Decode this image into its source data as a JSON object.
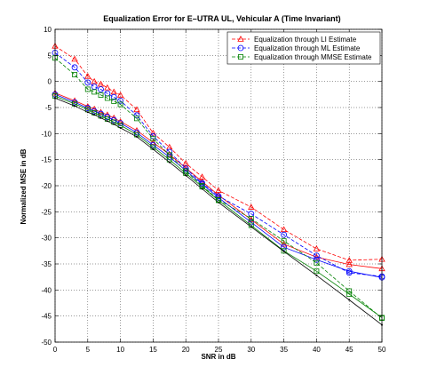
{
  "chart_data": {
    "type": "line",
    "title": "Equalization Error for E–UTRA UL, Vehicular A (Time Invariant)",
    "xlabel": "SNR in dB",
    "ylabel": "Normalized MSE in dB",
    "xlim": [
      0,
      50
    ],
    "ylim": [
      -50,
      10
    ],
    "xticks": [
      0,
      5,
      10,
      15,
      20,
      25,
      30,
      35,
      40,
      45,
      50
    ],
    "yticks": [
      10,
      5,
      0,
      -5,
      -10,
      -15,
      -20,
      -25,
      -30,
      -35,
      -40,
      -45,
      -50
    ],
    "grid": true,
    "legend_position": "top-right",
    "x": [
      0,
      3,
      5,
      6,
      7,
      8,
      9,
      10,
      12.5,
      15,
      17.5,
      20,
      22.5,
      25,
      30,
      35,
      40,
      45,
      50
    ],
    "series": [
      {
        "name": "Equalization through LI Estimate",
        "color": "#ff0000",
        "marker": "triangle",
        "linestyle": "dashed",
        "values": [
          6.8,
          4.3,
          1.0,
          0.0,
          -0.5,
          -1.2,
          -2.0,
          -2.6,
          -5.4,
          -9.9,
          -12.6,
          -15.7,
          -18.3,
          -20.9,
          -24.1,
          -28.4,
          -32.1,
          -34.3,
          -34.1
        ]
      },
      {
        "name": "Equalization through ML Estimate",
        "color": "#0000ff",
        "marker": "circle",
        "linestyle": "dashed",
        "values": [
          5.5,
          2.7,
          -0.2,
          -1.0,
          -1.5,
          -2.3,
          -3.0,
          -3.7,
          -6.5,
          -10.5,
          -13.5,
          -16.7,
          -19.5,
          -22.0,
          -25.4,
          -29.4,
          -33.4,
          -36.7,
          -37.4
        ]
      },
      {
        "name": "Equalization through MMSE Estimate",
        "color": "#008000",
        "marker": "square",
        "linestyle": "dashed",
        "values": [
          4.5,
          1.3,
          -1.5,
          -2.0,
          -2.6,
          -3.2,
          -3.8,
          -4.4,
          -7.1,
          -11.0,
          -14.1,
          -17.2,
          -20.0,
          -22.7,
          -26.3,
          -30.6,
          -34.8,
          -40.2,
          -45.4
        ]
      },
      {
        "name": "",
        "color": "#ff0000",
        "marker": "triangle",
        "linestyle": "solid",
        "values": [
          -2.2,
          -3.7,
          -4.8,
          -5.3,
          -5.9,
          -6.4,
          -7.0,
          -7.7,
          -9.4,
          -11.7,
          -14.0,
          -16.6,
          -19.2,
          -21.8,
          -26.5,
          -31.2,
          -33.7,
          -35.1,
          -35.9
        ]
      },
      {
        "name": "",
        "color": "#0000ff",
        "marker": "circle",
        "linestyle": "solid",
        "values": [
          -2.5,
          -4.0,
          -5.1,
          -5.7,
          -6.2,
          -6.8,
          -7.4,
          -8.0,
          -9.8,
          -12.2,
          -14.5,
          -17.1,
          -19.7,
          -22.3,
          -27.0,
          -31.8,
          -34.2,
          -36.4,
          -37.6
        ]
      },
      {
        "name": "",
        "color": "#008000",
        "marker": "square",
        "linestyle": "solid",
        "values": [
          -2.8,
          -4.3,
          -5.4,
          -6.0,
          -6.6,
          -7.2,
          -7.8,
          -8.4,
          -10.2,
          -12.6,
          -15.0,
          -17.6,
          -20.2,
          -22.8,
          -27.6,
          -32.5,
          -36.4,
          -40.8,
          -45.3
        ]
      },
      {
        "name": "",
        "color": "#000000",
        "marker": "dot",
        "linestyle": "solid",
        "values": [
          -3.2,
          -4.7,
          -5.9,
          -6.4,
          -7.0,
          -7.6,
          -8.2,
          -8.9,
          -10.6,
          -13.0,
          -15.5,
          -18.0,
          -20.6,
          -23.2,
          -27.9,
          -32.6,
          -37.2,
          -41.9,
          -46.7
        ]
      }
    ]
  }
}
